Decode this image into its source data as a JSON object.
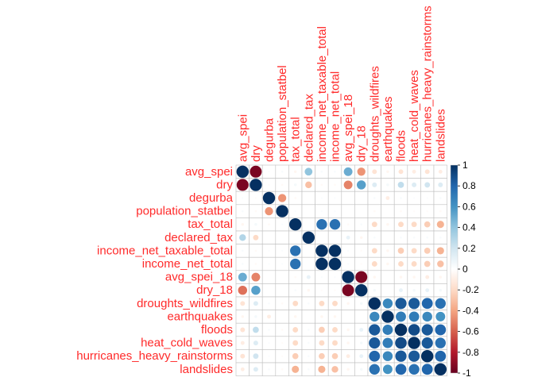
{
  "chart_data": {
    "type": "heatmap",
    "variables": [
      "avg_spei",
      "dry",
      "degurba",
      "population_statbel",
      "tax_total",
      "declared_tax",
      "income_net_taxable_total",
      "income_net_total",
      "avg_spei_18",
      "dry_18",
      "droughts_wildfires",
      "earthquakes",
      "floods",
      "heat_cold_waves",
      "hurricanes_heavy_rainstorms",
      "landslides"
    ],
    "matrix": [
      [
        1.0,
        -0.95,
        0.02,
        0.03,
        -0.05,
        0.4,
        0.03,
        0.03,
        0.5,
        -0.45,
        -0.15,
        -0.05,
        -0.15,
        -0.1,
        -0.15,
        -0.1
      ],
      [
        -0.95,
        1.0,
        -0.02,
        -0.03,
        0.05,
        -0.3,
        -0.03,
        -0.03,
        -0.5,
        0.55,
        0.15,
        0.05,
        0.25,
        0.15,
        0.2,
        0.15
      ],
      [
        0.02,
        -0.02,
        1.0,
        -0.45,
        -0.03,
        0.0,
        0.02,
        0.02,
        0.0,
        0.0,
        0.03,
        -0.1,
        0.03,
        0.02,
        0.02,
        0.03
      ],
      [
        0.03,
        -0.03,
        -0.45,
        1.0,
        0.02,
        0.0,
        0.02,
        0.02,
        0.0,
        0.0,
        -0.03,
        0.0,
        -0.03,
        -0.02,
        -0.02,
        -0.03
      ],
      [
        -0.05,
        0.05,
        -0.03,
        0.02,
        1.0,
        0.0,
        0.75,
        0.75,
        -0.03,
        0.03,
        -0.2,
        -0.05,
        -0.2,
        -0.2,
        -0.25,
        -0.35
      ],
      [
        0.3,
        -0.2,
        0.0,
        0.0,
        0.0,
        1.0,
        0.0,
        0.0,
        0.1,
        -0.05,
        0.03,
        0.0,
        0.03,
        0.03,
        0.03,
        0.03
      ],
      [
        0.03,
        -0.03,
        0.02,
        0.02,
        0.75,
        0.0,
        1.0,
        1.0,
        0.02,
        -0.02,
        -0.2,
        -0.05,
        -0.25,
        -0.2,
        -0.25,
        -0.35
      ],
      [
        0.03,
        -0.03,
        0.02,
        0.02,
        0.75,
        0.0,
        1.0,
        1.0,
        0.02,
        -0.02,
        -0.2,
        -0.05,
        -0.2,
        -0.2,
        -0.25,
        -0.3
      ],
      [
        0.5,
        -0.5,
        0.0,
        0.0,
        -0.03,
        0.1,
        0.02,
        0.02,
        1.0,
        -0.95,
        -0.05,
        0.0,
        -0.05,
        -0.05,
        -0.1,
        -0.05
      ],
      [
        -0.55,
        0.55,
        0.0,
        0.0,
        0.03,
        -0.05,
        -0.02,
        -0.02,
        -0.95,
        1.0,
        0.05,
        0.0,
        0.1,
        0.05,
        0.1,
        0.05
      ],
      [
        -0.15,
        0.15,
        0.03,
        -0.03,
        -0.2,
        0.03,
        -0.2,
        -0.2,
        -0.05,
        0.05,
        1.0,
        0.65,
        0.85,
        0.85,
        0.8,
        0.75
      ],
      [
        -0.05,
        0.05,
        -0.1,
        0.0,
        -0.05,
        0.0,
        -0.05,
        -0.05,
        0.0,
        0.0,
        0.65,
        1.0,
        0.7,
        0.7,
        0.65,
        0.6
      ],
      [
        -0.15,
        0.25,
        0.03,
        -0.03,
        -0.2,
        0.03,
        -0.25,
        -0.2,
        -0.05,
        0.1,
        0.85,
        0.7,
        1.0,
        0.9,
        0.85,
        0.8
      ],
      [
        -0.1,
        0.15,
        0.02,
        -0.02,
        -0.2,
        0.03,
        -0.2,
        -0.2,
        -0.05,
        0.05,
        0.85,
        0.7,
        0.9,
        1.0,
        0.85,
        0.75
      ],
      [
        -0.15,
        0.2,
        0.02,
        -0.02,
        -0.25,
        0.03,
        -0.25,
        -0.25,
        -0.1,
        0.1,
        0.8,
        0.65,
        0.85,
        0.85,
        1.0,
        0.8
      ],
      [
        -0.1,
        0.15,
        0.03,
        -0.03,
        -0.35,
        0.03,
        -0.35,
        -0.3,
        -0.05,
        0.05,
        0.75,
        0.6,
        0.8,
        0.75,
        0.8,
        1.0
      ]
    ],
    "ylim": [
      -1,
      1
    ],
    "legend_ticks": [
      "-1",
      "-0.8",
      "-0.6",
      "-0.4",
      "-0.2",
      "0",
      "0.2",
      "0.4",
      "0.6",
      "0.8",
      "1"
    ],
    "grid": true,
    "legend_placement": "right",
    "colors": {
      "label": "#ff2a2a",
      "grid": "#bfbfbf",
      "scale": [
        "#67001f",
        "#b2182b",
        "#d6604d",
        "#f4a582",
        "#fddbc7",
        "#ffffff",
        "#d1e5f0",
        "#92c5de",
        "#4393c3",
        "#2166ac",
        "#053061"
      ]
    }
  }
}
